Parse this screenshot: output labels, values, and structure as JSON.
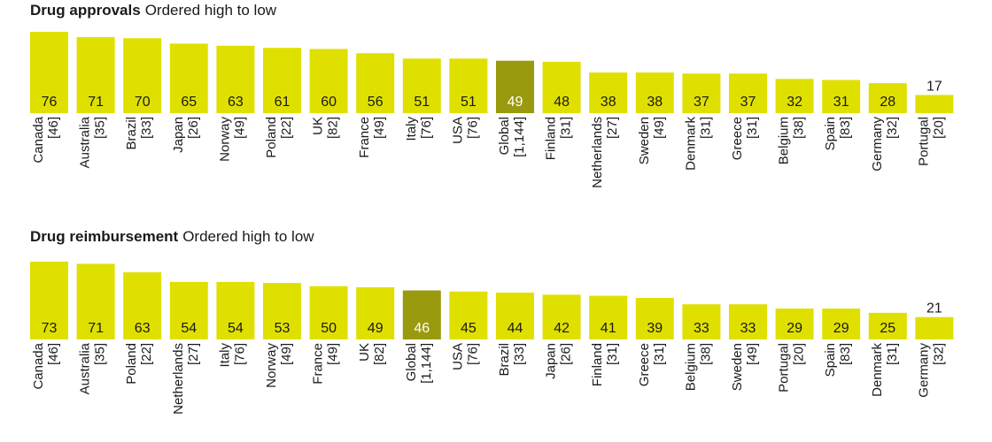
{
  "colors": {
    "bar": "#e0e000",
    "highlight": "#999a0d",
    "text": "#1a1a1a",
    "highlight_text": "#ffffff"
  },
  "chart_data": [
    {
      "type": "bar",
      "title": "Drug approvals",
      "subtitle": "Ordered high to low",
      "categories": [
        "Canada\n[46]",
        "Australia\n[35]",
        "Brazil\n[33]",
        "Japan\n[26]",
        "Norway\n[49]",
        "Poland\n[22]",
        "UK\n[82]",
        "France\n[49]",
        "Italy\n[76]",
        "USA\n[76]",
        "Global\n[1,144]",
        "Finland\n[31]",
        "Netherlands\n[27]",
        "Sweden\n[49]",
        "Denmark\n[31]",
        "Greece\n[31]",
        "Belgium\n[38]",
        "Spain\n[83]",
        "Germany\n[32]",
        "Portugal\n[20]"
      ],
      "values": [
        76,
        71,
        70,
        65,
        63,
        61,
        60,
        56,
        51,
        51,
        49,
        48,
        38,
        38,
        37,
        37,
        32,
        31,
        28,
        17
      ],
      "highlight": "Global\n[1,144]",
      "ylim": [
        0,
        76
      ]
    },
    {
      "type": "bar",
      "title": "Drug reimbursement",
      "subtitle": "Ordered high to low",
      "categories": [
        "Canada\n[46]",
        "Australia\n[35]",
        "Poland\n[22]",
        "Netherlands\n[27]",
        "Italy\n[76]",
        "Norway\n[49]",
        "France\n[49]",
        "UK\n[82]",
        "Global\n[1,144]",
        "USA\n[76]",
        "Brazil\n[33]",
        "Japan\n[26]",
        "Finland\n[31]",
        "Greece\n[31]",
        "Belgium\n[38]",
        "Sweden\n[49]",
        "Portugal\n[20]",
        "Spain\n[83]",
        "Denmark\n[31]",
        "Germany\n[32]"
      ],
      "values": [
        73,
        71,
        63,
        54,
        54,
        53,
        50,
        49,
        46,
        45,
        44,
        42,
        41,
        39,
        33,
        33,
        29,
        29,
        25,
        21
      ],
      "highlight": "Global\n[1,144]",
      "ylim": [
        0,
        73
      ]
    }
  ]
}
